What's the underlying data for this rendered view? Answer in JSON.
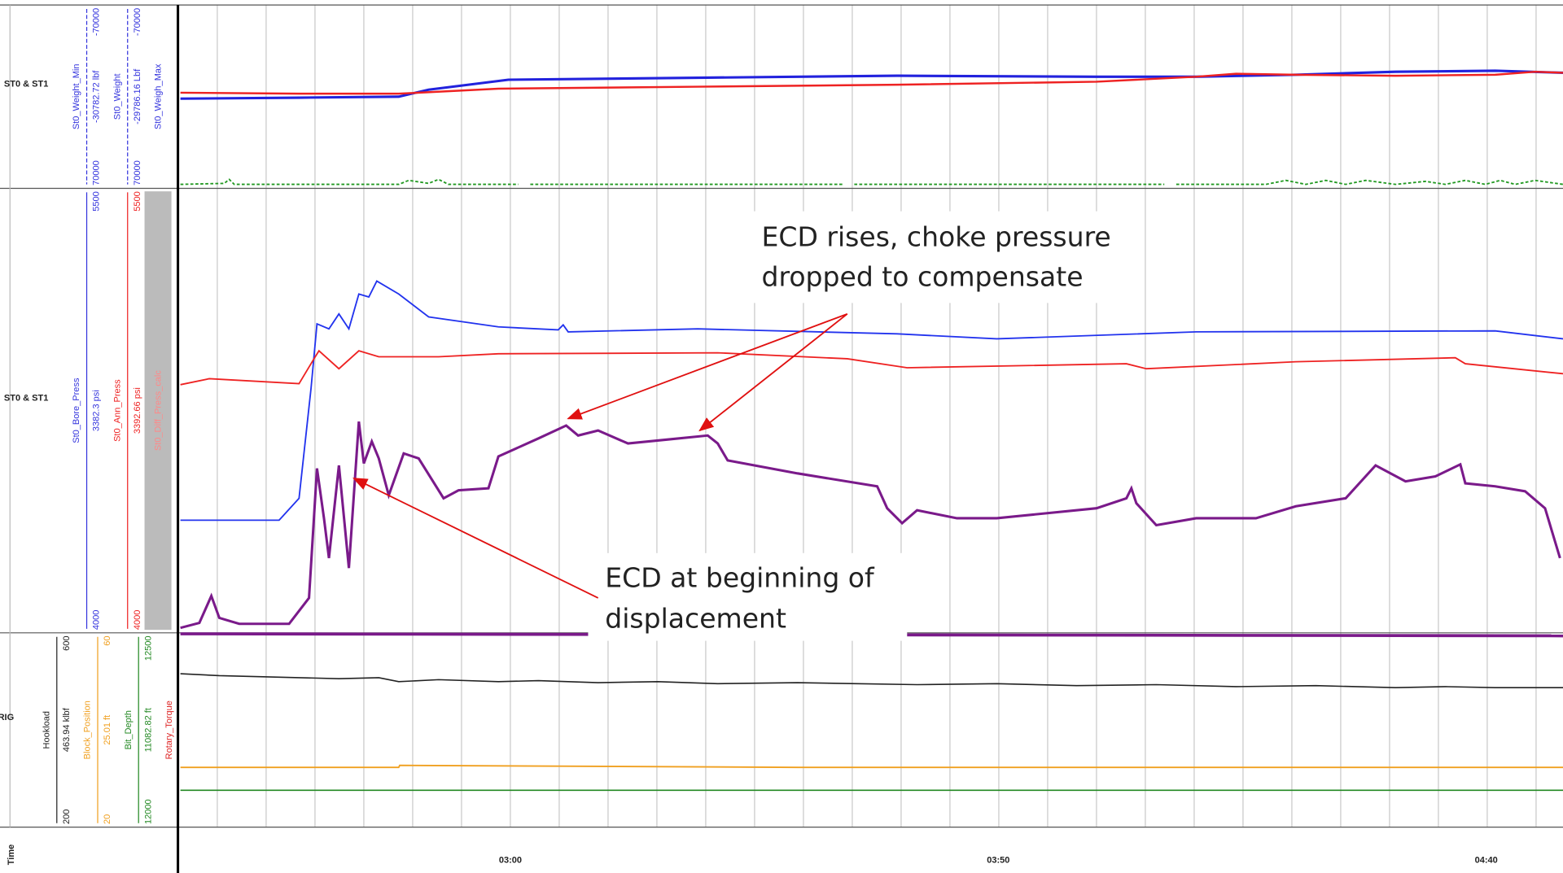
{
  "tracks": [
    {
      "label": "ST0 & ST1",
      "curves": [
        {
          "name": "St0_Weight_Min",
          "value": "-30782.72 lbf",
          "max": "-70000",
          "min": "70000",
          "color": "#3333dd"
        },
        {
          "name": "St0_Weight",
          "value": "-29786.16 Lbf",
          "max": "-70000",
          "min": "70000",
          "color": "#3333dd"
        },
        {
          "name": "St0_Weigh_Max",
          "color": "#3333dd"
        }
      ]
    },
    {
      "label": "ST0 & ST1",
      "curves": [
        {
          "name": "St0_Bore_Press",
          "value": "3382.3 psi",
          "max": "5500",
          "min": "4000",
          "color": "#3333dd"
        },
        {
          "name": "St0_Ann_Press",
          "value": "3392.66 psi",
          "max": "5500",
          "min": "4000",
          "color": "#ee2222"
        },
        {
          "name": "St0_Diff_Press_calc",
          "color": "#ff8888"
        }
      ]
    },
    {
      "label": "RIG",
      "curves": [
        {
          "name": "Hookload",
          "value": "463.94 klbf",
          "max": "600",
          "min": "200",
          "color": "#222222"
        },
        {
          "name": "Block_Position",
          "value": "25.01 ft",
          "max": "60",
          "min": "20",
          "color": "#f0a020"
        },
        {
          "name": "Bit_Depth",
          "value": "11082.82 ft",
          "max": "12500",
          "min": "12000",
          "color": "#228822"
        },
        {
          "name": "Rotary_Torque",
          "color": "#dd2222"
        }
      ]
    }
  ],
  "time_axis": {
    "label": "Time",
    "ticks": [
      "03:00",
      "03:50",
      "04:40"
    ]
  },
  "annotations": [
    {
      "lines": [
        "ECD rises, choke pressure",
        "dropped to compensate"
      ]
    },
    {
      "lines": [
        "ECD at beginning of",
        "displacement"
      ]
    }
  ]
}
